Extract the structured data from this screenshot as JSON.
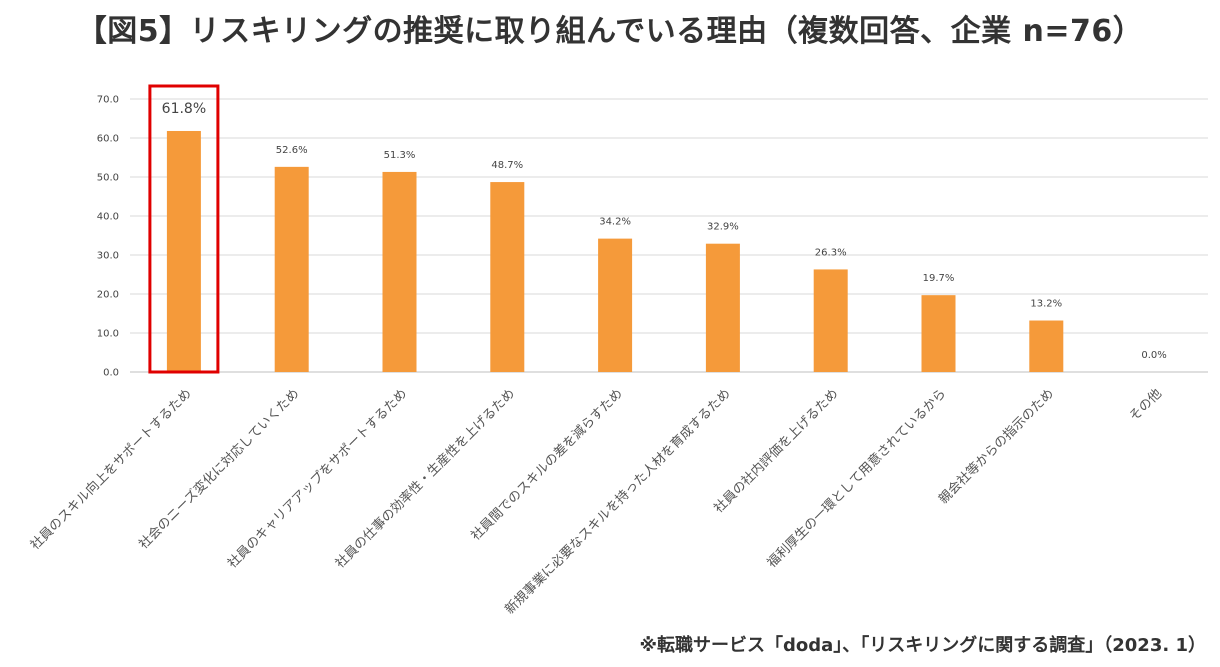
{
  "page": {
    "title": "【図5】リスキリングの推奨に取り組んでいる理由（複数回答、企業 n=76）",
    "footnote": "※転職サービス「doda」、「リスキリングに関する調査」（2023. 1）"
  },
  "chart_data": {
    "type": "bar",
    "title": "【図5】リスキリングの推奨に取り組んでいる理由（複数回答、企業 n=76）",
    "categories": [
      "社員のスキル向上をサポートするため",
      "社会のニーズ変化に対応していくため",
      "社員のキャリアアップをサポートするため",
      "社員の仕事の効率性・生産性を上げるため",
      "社員間でのスキルの差を減らすため",
      "新規事業に必要なスキルを持った人材を育成するため",
      "社員の社内評価を上げるため",
      "福利厚生の一環として用意されているから",
      "親会社等からの指示のため",
      "その他"
    ],
    "values": [
      61.8,
      52.6,
      51.3,
      48.7,
      34.2,
      32.9,
      26.3,
      19.7,
      13.2,
      0.0
    ],
    "value_labels": [
      "61.8%",
      "52.6%",
      "51.3%",
      "48.7%",
      "34.2%",
      "32.9%",
      "26.3%",
      "19.7%",
      "13.2%",
      "0.0%"
    ],
    "ylim": [
      0,
      70
    ],
    "yticks": [
      "0.0",
      "10.0",
      "20.0",
      "30.0",
      "40.0",
      "50.0",
      "60.0",
      "70.0"
    ],
    "grid": true,
    "highlighted_index": 0,
    "colors": {
      "bar": "#F59A3A",
      "highlight_box": "#E00000",
      "grid": "#D9D9D9"
    }
  }
}
